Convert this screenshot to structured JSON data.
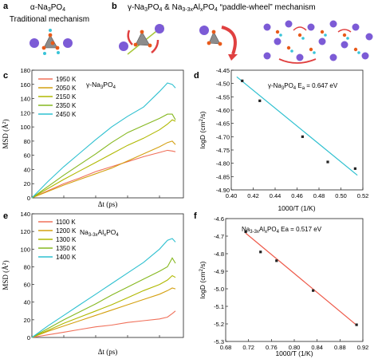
{
  "panels": {
    "a": {
      "letter": "a",
      "title": "α-Na3PO4",
      "subtitle": "Traditional mechanism"
    },
    "b": {
      "letter": "b",
      "title": "γ-Na3PO4 & Na3-3xAlxPO4 “paddle-wheel” mechanism"
    }
  },
  "chart_data": [
    {
      "panel": "c",
      "type": "line",
      "xlabel": "Δt (ps)",
      "ylabel": "MSD (Å²)",
      "xlim": [
        0,
        95
      ],
      "ylim": [
        0,
        180
      ],
      "yticks": [
        0,
        20,
        40,
        60,
        80,
        100,
        120,
        140,
        160,
        180
      ],
      "xtick_labels_visible": false,
      "annotation": "γ-Na3PO4",
      "series": [
        {
          "name": "1950 K",
          "color": "#f0705a",
          "x": [
            0,
            10,
            20,
            30,
            40,
            50,
            60,
            70,
            80,
            85,
            88,
            90
          ],
          "y": [
            0,
            10,
            20,
            28,
            37,
            44,
            51,
            58,
            64,
            67,
            66,
            65
          ]
        },
        {
          "name": "2050 K",
          "color": "#d4a010",
          "x": [
            0,
            10,
            20,
            30,
            40,
            50,
            60,
            70,
            80,
            85,
            88,
            90
          ],
          "y": [
            0,
            9,
            18,
            26,
            34,
            42,
            52,
            62,
            72,
            78,
            80,
            75
          ]
        },
        {
          "name": "2150 K",
          "color": "#b0b800",
          "x": [
            0,
            10,
            20,
            30,
            40,
            50,
            60,
            70,
            80,
            85,
            88,
            90
          ],
          "y": [
            0,
            13,
            26,
            38,
            50,
            62,
            74,
            84,
            96,
            104,
            110,
            108
          ]
        },
        {
          "name": "2350 K",
          "color": "#86b820",
          "x": [
            0,
            10,
            20,
            30,
            40,
            50,
            60,
            70,
            80,
            85,
            88,
            90
          ],
          "y": [
            0,
            16,
            32,
            47,
            62,
            78,
            92,
            102,
            112,
            118,
            118,
            110
          ]
        },
        {
          "name": "2450 K",
          "color": "#2ec0d0",
          "x": [
            0,
            10,
            20,
            30,
            40,
            50,
            60,
            70,
            80,
            85,
            88,
            90
          ],
          "y": [
            0,
            23,
            44,
            63,
            82,
            100,
            115,
            128,
            150,
            162,
            160,
            155
          ]
        }
      ]
    },
    {
      "panel": "d",
      "type": "scatter",
      "xlabel": "1000/T (1/K)",
      "ylabel": "logD (cm²/s)",
      "xlim": [
        0.4,
        0.52
      ],
      "ylim": [
        -4.9,
        -4.45
      ],
      "xticks": [
        0.4,
        0.42,
        0.44,
        0.46,
        0.48,
        0.5,
        0.52
      ],
      "yticks": [
        -4.45,
        -4.5,
        -4.55,
        -4.6,
        -4.65,
        -4.7,
        -4.75,
        -4.8,
        -4.85,
        -4.9
      ],
      "annotation": "γ-Na3PO4    Ea = 0.647 eV",
      "points": {
        "x": [
          0.41,
          0.426,
          0.465,
          0.488,
          0.513
        ],
        "y": [
          -4.49,
          -4.565,
          -4.7,
          -4.795,
          -4.82
        ]
      },
      "fit": {
        "x": [
          0.405,
          0.515
        ],
        "y": [
          -4.475,
          -4.845
        ]
      },
      "line_color": "#2ec0d0"
    },
    {
      "panel": "e",
      "type": "line",
      "xlabel": "Δt (ps)",
      "ylabel": "MSD (Å²)",
      "xlim": [
        0,
        95
      ],
      "ylim": [
        0,
        140
      ],
      "yticks": [
        0,
        20,
        40,
        60,
        80,
        100,
        120,
        140
      ],
      "xtick_labels_visible": false,
      "annotation": "Na3-3xAlxPO4",
      "series": [
        {
          "name": "1100 K",
          "color": "#f0705a",
          "x": [
            0,
            10,
            20,
            30,
            40,
            50,
            60,
            70,
            80,
            85,
            88,
            90
          ],
          "y": [
            0,
            3,
            6,
            9,
            12,
            14,
            17,
            19,
            21,
            23,
            27,
            30
          ]
        },
        {
          "name": "1200 K",
          "color": "#d4a010",
          "x": [
            0,
            10,
            20,
            30,
            40,
            50,
            60,
            70,
            80,
            85,
            88,
            90
          ],
          "y": [
            0,
            7,
            13,
            19,
            25,
            31,
            37,
            43,
            49,
            53,
            56,
            55
          ]
        },
        {
          "name": "1300 K",
          "color": "#b0b800",
          "x": [
            0,
            10,
            20,
            30,
            40,
            50,
            60,
            70,
            80,
            85,
            88,
            90
          ],
          "y": [
            0,
            8,
            16,
            23,
            30,
            37,
            45,
            53,
            60,
            65,
            70,
            68
          ]
        },
        {
          "name": "1350 K",
          "color": "#86b820",
          "x": [
            0,
            10,
            20,
            30,
            40,
            50,
            60,
            70,
            80,
            85,
            88,
            90
          ],
          "y": [
            0,
            10,
            20,
            29,
            38,
            48,
            57,
            66,
            75,
            80,
            90,
            84
          ]
        },
        {
          "name": "1400 K",
          "color": "#2ec0d0",
          "x": [
            0,
            10,
            20,
            30,
            40,
            50,
            60,
            70,
            80,
            85,
            88,
            90
          ],
          "y": [
            0,
            13,
            25,
            37,
            49,
            61,
            73,
            85,
            100,
            110,
            112,
            108
          ]
        }
      ]
    },
    {
      "panel": "f",
      "type": "scatter",
      "xlabel": "1000/T (1/K)",
      "ylabel": "logD (cm²/s)",
      "xlim": [
        0.68,
        0.92
      ],
      "ylim": [
        -5.3,
        -4.6
      ],
      "xticks": [
        0.68,
        0.72,
        0.76,
        0.8,
        0.84,
        0.88,
        0.92
      ],
      "yticks": [
        -4.6,
        -4.7,
        -4.8,
        -4.9,
        -5.0,
        -5.1,
        -5.2,
        -5.3
      ],
      "annotation": "Na3-3xAlxPO4    Ea = 0.517 eV",
      "points": {
        "x": [
          0.715,
          0.741,
          0.769,
          0.833,
          0.909
        ],
        "y": [
          -4.675,
          -4.79,
          -4.84,
          -5.01,
          -5.205
        ]
      },
      "fit": {
        "x": [
          0.715,
          0.909
        ],
        "y": [
          -4.683,
          -5.207
        ]
      },
      "line_color": "#ee5a4a"
    }
  ]
}
